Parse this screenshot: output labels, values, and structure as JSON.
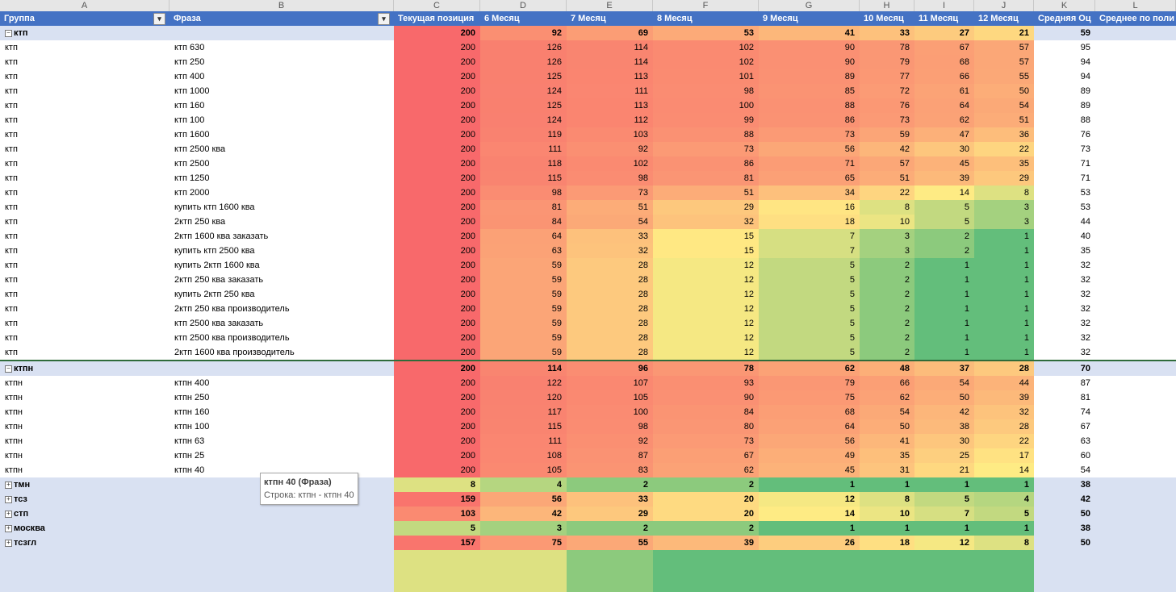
{
  "column_letters": [
    "A",
    "B",
    "C",
    "D",
    "E",
    "F",
    "G",
    "H",
    "I",
    "J",
    "K",
    "L"
  ],
  "headers": [
    "Группа",
    "Фраза",
    "Текущая позиция",
    "6 Месяц",
    "7 Месяц",
    "8 Месяц",
    "9 Месяц",
    "10 Месяц",
    "11 Месяц",
    "12 Месяц",
    "Средняя Оц",
    "Среднее по поли"
  ],
  "groups": [
    {
      "name": "ктп",
      "expander": "−",
      "totals": [
        "200",
        "92",
        "69",
        "53",
        "41",
        "33",
        "27",
        "21",
        "59"
      ],
      "rows": [
        [
          "ктп",
          "ктп 630",
          "200",
          "126",
          "114",
          "102",
          "90",
          "78",
          "67",
          "57",
          "95"
        ],
        [
          "ктп",
          "ктп 250",
          "200",
          "126",
          "114",
          "102",
          "90",
          "79",
          "68",
          "57",
          "94"
        ],
        [
          "ктп",
          "ктп 400",
          "200",
          "125",
          "113",
          "101",
          "89",
          "77",
          "66",
          "55",
          "94"
        ],
        [
          "ктп",
          "ктп 1000",
          "200",
          "124",
          "111",
          "98",
          "85",
          "72",
          "61",
          "50",
          "89"
        ],
        [
          "ктп",
          "ктп 160",
          "200",
          "125",
          "113",
          "100",
          "88",
          "76",
          "64",
          "54",
          "89"
        ],
        [
          "ктп",
          "ктп 100",
          "200",
          "124",
          "112",
          "99",
          "86",
          "73",
          "62",
          "51",
          "88"
        ],
        [
          "ктп",
          "ктп 1600",
          "200",
          "119",
          "103",
          "88",
          "73",
          "59",
          "47",
          "36",
          "76"
        ],
        [
          "ктп",
          "ктп 2500 ква",
          "200",
          "111",
          "92",
          "73",
          "56",
          "42",
          "30",
          "22",
          "73"
        ],
        [
          "ктп",
          "ктп 2500",
          "200",
          "118",
          "102",
          "86",
          "71",
          "57",
          "45",
          "35",
          "71"
        ],
        [
          "ктп",
          "ктп 1250",
          "200",
          "115",
          "98",
          "81",
          "65",
          "51",
          "39",
          "29",
          "71"
        ],
        [
          "ктп",
          "ктп 2000",
          "200",
          "98",
          "73",
          "51",
          "34",
          "22",
          "14",
          "8",
          "53"
        ],
        [
          "ктп",
          "купить ктп 1600 ква",
          "200",
          "81",
          "51",
          "29",
          "16",
          "8",
          "5",
          "3",
          "53"
        ],
        [
          "ктп",
          "2ктп 250 ква",
          "200",
          "84",
          "54",
          "32",
          "18",
          "10",
          "5",
          "3",
          "44"
        ],
        [
          "ктп",
          "2ктп 1600 ква заказать",
          "200",
          "64",
          "33",
          "15",
          "7",
          "3",
          "2",
          "1",
          "40"
        ],
        [
          "ктп",
          "купить ктп 2500 ква",
          "200",
          "63",
          "32",
          "15",
          "7",
          "3",
          "2",
          "1",
          "35"
        ],
        [
          "ктп",
          "купить 2ктп 1600 ква",
          "200",
          "59",
          "28",
          "12",
          "5",
          "2",
          "1",
          "1",
          "32"
        ],
        [
          "ктп",
          "2ктп 250 ква заказать",
          "200",
          "59",
          "28",
          "12",
          "5",
          "2",
          "1",
          "1",
          "32"
        ],
        [
          "ктп",
          "купить 2ктп 250 ква",
          "200",
          "59",
          "28",
          "12",
          "5",
          "2",
          "1",
          "1",
          "32"
        ],
        [
          "ктп",
          "2ктп 250 ква производитель",
          "200",
          "59",
          "28",
          "12",
          "5",
          "2",
          "1",
          "1",
          "32"
        ],
        [
          "ктп",
          "ктп 2500 ква заказать",
          "200",
          "59",
          "28",
          "12",
          "5",
          "2",
          "1",
          "1",
          "32"
        ],
        [
          "ктп",
          "ктп 2500 ква производитель",
          "200",
          "59",
          "28",
          "12",
          "5",
          "2",
          "1",
          "1",
          "32"
        ],
        [
          "ктп",
          "2ктп 1600 ква производитель",
          "200",
          "59",
          "28",
          "12",
          "5",
          "2",
          "1",
          "1",
          "32"
        ]
      ]
    },
    {
      "name": "ктпн",
      "expander": "−",
      "totals": [
        "200",
        "114",
        "96",
        "78",
        "62",
        "48",
        "37",
        "28",
        "70"
      ],
      "rows": [
        [
          "ктпн",
          "ктпн 400",
          "200",
          "122",
          "107",
          "93",
          "79",
          "66",
          "54",
          "44",
          "87"
        ],
        [
          "ктпн",
          "ктпн 250",
          "200",
          "120",
          "105",
          "90",
          "75",
          "62",
          "50",
          "39",
          "81"
        ],
        [
          "ктпн",
          "ктпн 160",
          "200",
          "117",
          "100",
          "84",
          "68",
          "54",
          "42",
          "32",
          "74"
        ],
        [
          "ктпн",
          "ктпн 100",
          "200",
          "115",
          "98",
          "80",
          "64",
          "50",
          "38",
          "28",
          "67"
        ],
        [
          "ктпн",
          "ктпн 63",
          "200",
          "111",
          "92",
          "73",
          "56",
          "41",
          "30",
          "22",
          "63"
        ],
        [
          "ктпн",
          "ктпн 25",
          "200",
          "108",
          "87",
          "67",
          "49",
          "35",
          "25",
          "17",
          "60"
        ],
        [
          "ктпн",
          "ктпн 40",
          "200",
          "105",
          "83",
          "62",
          "45",
          "31",
          "21",
          "14",
          "54"
        ]
      ]
    },
    {
      "name": "тмн",
      "expander": "+",
      "totals": [
        "8",
        "4",
        "2",
        "2",
        "1",
        "1",
        "1",
        "1",
        "38"
      ],
      "rows": []
    },
    {
      "name": "тсз",
      "expander": "+",
      "totals": [
        "159",
        "56",
        "33",
        "20",
        "12",
        "8",
        "5",
        "4",
        "42"
      ],
      "rows": []
    },
    {
      "name": "стп",
      "expander": "+",
      "totals": [
        "103",
        "42",
        "29",
        "20",
        "14",
        "10",
        "7",
        "5",
        "50"
      ],
      "rows": []
    },
    {
      "name": "москва",
      "expander": "+",
      "totals": [
        "5",
        "3",
        "2",
        "2",
        "1",
        "1",
        "1",
        "1",
        "38"
      ],
      "rows": []
    },
    {
      "name": "тсзгл",
      "expander": "+",
      "totals": [
        "157",
        "75",
        "55",
        "39",
        "26",
        "18",
        "12",
        "8",
        "50"
      ],
      "rows": []
    }
  ],
  "tooltip": {
    "title": "ктпн 40 (Фраза)",
    "line": "Строка: ктпн - ктпн 40"
  },
  "colors": {
    "header_bg": "#4472c4",
    "group_row_bg": "#d9e1f2",
    "scale_low": "#63be7b",
    "scale_mid": "#ffeb84",
    "scale_high": "#f8696b"
  }
}
